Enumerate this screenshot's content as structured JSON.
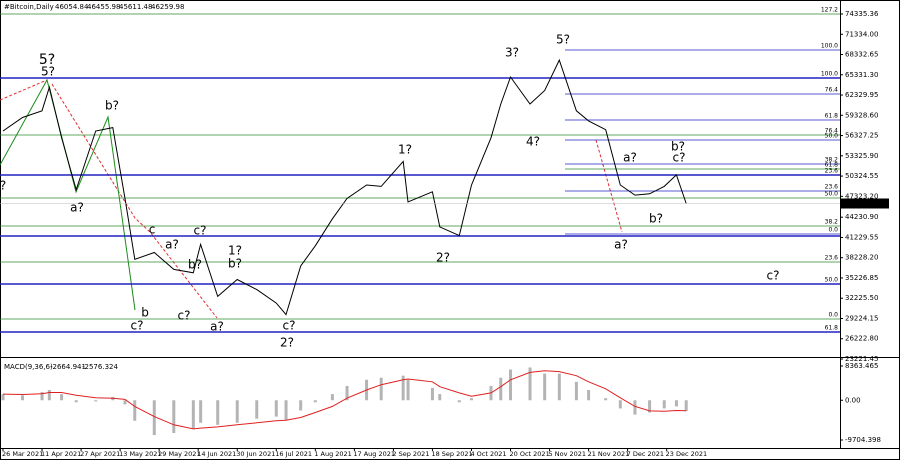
{
  "chart_data": {
    "type": "line",
    "title": "#Bitcoin,Daily",
    "color": "#000000",
    "last_bar": {
      "open": 46054.84,
      "high": 46455.98,
      "low": 45611.48,
      "close": 46259.98
    },
    "x": [
      "26 Mar 2021",
      "3 Apr 2021",
      "11 Apr 2021",
      "14 Apr 2021",
      "19 Apr 2021",
      "25 Apr 2021",
      "3 May 2021",
      "10 May 2021",
      "15 May 2021",
      "19 May 2021",
      "27 May 2021",
      "4 Jun 2021",
      "12 Jun 2021",
      "15 Jun 2021",
      "22 Jun 2021",
      "30 Jun 2021",
      "8 Jul 2021",
      "16 Jul 2021",
      "20 Jul 2021",
      "26 Jul 2021",
      "1 Aug 2021",
      "8 Aug 2021",
      "14 Aug 2021",
      "22 Aug 2021",
      "28 Aug 2021",
      "6 Sep 2021",
      "8 Sep 2021",
      "18 Sep 2021",
      "21 Sep 2021",
      "29 Sep 2021",
      "4 Oct 2021",
      "12 Oct 2021",
      "16 Oct 2021",
      "20 Oct 2021",
      "28 Oct 2021",
      "3 Nov 2021",
      "9 Nov 2021",
      "16 Nov 2021",
      "21 Nov 2021",
      "28 Nov 2021",
      "4 Dec 2021",
      "10 Dec 2021",
      "16 Dec 2021",
      "22 Dec 2021",
      "27 Dec 2021",
      "31 Dec 2021"
    ],
    "values": [
      57000,
      59000,
      60000,
      63500,
      56000,
      48300,
      57000,
      57500,
      47000,
      38000,
      39000,
      36500,
      36000,
      40200,
      32500,
      35000,
      33500,
      31500,
      29800,
      37000,
      40000,
      44000,
      47000,
      49000,
      48800,
      52500,
      46500,
      48000,
      42800,
      41500,
      49000,
      56000,
      61000,
      65000,
      61000,
      63000,
      67500,
      60000,
      58500,
      57200,
      49000,
      47500,
      47700,
      48800,
      50500,
      46259.98
    ],
    "xticks": [
      "26 Mar 2021",
      "11 Apr 2021",
      "27 Apr 2021",
      "13 May 2021",
      "29 May 2021",
      "14 Jun 2021",
      "30 Jun 2021",
      "16 Jul 2021",
      "1 Aug 2021",
      "17 Aug 2021",
      "2 Sep 2021",
      "18 Sep 2021",
      "4 Oct 2021",
      "20 Oct 2021",
      "5 Nov 2021",
      "21 Nov 2021",
      "7 Dec 2021",
      "23 Dec 2021"
    ],
    "ylim": [
      23518,
      76113
    ],
    "yticks": [
      {
        "value": 74335.36,
        "label": "74335.36"
      },
      {
        "value": 71334.0,
        "label": "71334.00"
      },
      {
        "value": 68332.65,
        "label": "68332.65"
      },
      {
        "value": 65331.3,
        "label": "65331.30"
      },
      {
        "value": 62329.95,
        "label": "62329.95"
      },
      {
        "value": 59328.6,
        "label": "59328.60"
      },
      {
        "value": 56327.25,
        "label": "56327.25"
      },
      {
        "value": 53325.9,
        "label": "53325.90"
      },
      {
        "value": 50324.55,
        "label": "50324.55"
      },
      {
        "value": 47323.2,
        "label": "47323.20"
      },
      {
        "value": 44230.9,
        "label": "44230.90"
      },
      {
        "value": 41229.55,
        "label": "41229.55"
      },
      {
        "value": 38228.2,
        "label": "38228.20"
      },
      {
        "value": 35226.85,
        "label": "35226.85"
      },
      {
        "value": 32225.5,
        "label": "32225.50"
      },
      {
        "value": 29224.15,
        "label": "29224.15"
      },
      {
        "value": 26222.8,
        "label": "26222.80"
      },
      {
        "value": 23221.45,
        "label": "23221.45"
      }
    ],
    "levels": [
      {
        "price": 74335,
        "color": "#2e8b2e",
        "label": "127.2"
      },
      {
        "price": 69002,
        "color": "#2020c0",
        "label": "100.0"
      },
      {
        "price": 64853,
        "color": "#2020c0",
        "label": "100.0"
      },
      {
        "price": 62483,
        "color": "#2020c0",
        "label": "76.4"
      },
      {
        "price": 58631,
        "color": "#2020c0",
        "label": "61.8"
      },
      {
        "price": 56408,
        "color": "#2e8b2e",
        "label": "76.4"
      },
      {
        "price": 55667,
        "color": "#2020c0",
        "label": "50.0"
      },
      {
        "price": 52112,
        "color": "#2020c0",
        "label": "38.2"
      },
      {
        "price": 51371,
        "color": "#2e8b2e",
        "label": "61.8"
      },
      {
        "price": 50482,
        "color": "#2020c0",
        "label": "23.6"
      },
      {
        "price": 48112,
        "color": "#2020c0",
        "label": "23.6"
      },
      {
        "price": 47075,
        "color": "#2e8b2e",
        "label": "50.0"
      },
      {
        "price": 42927,
        "color": "#2e8b2e",
        "label": "38.2"
      },
      {
        "price": 41741,
        "color": "#2020c0",
        "label": "0.0"
      },
      {
        "price": 41445,
        "color": "#2020c0"
      },
      {
        "price": 37593,
        "color": "#2e8b2e",
        "label": "23.6"
      },
      {
        "price": 34333,
        "color": "#2020c0",
        "label": "50.0"
      },
      {
        "price": 29148,
        "color": "#2e8b2e",
        "label": "0.0"
      },
      {
        "price": 27222,
        "color": "#2020c0",
        "label": "61.8"
      }
    ],
    "annotations": [
      {
        "text": "5?",
        "color": "#1515d0"
      },
      {
        "text": "5?",
        "color": "#1a8c1a"
      },
      {
        "text": "a?",
        "color": "#1a8c1a"
      },
      {
        "text": "b?",
        "color": "#1a8c1a"
      },
      {
        "text": "c?",
        "color": "#1a8c1a"
      },
      {
        "text": "b",
        "color": "#1a8c1a"
      },
      {
        "text": "c",
        "color": "#1a8c1a"
      },
      {
        "text": "a?",
        "color": "#1a8c1a"
      },
      {
        "text": "c?",
        "color": "#1a8c1a"
      },
      {
        "text": "b?",
        "color": "#1a8c1a"
      },
      {
        "text": "c?",
        "color": "#1a8c1a"
      },
      {
        "text": "a?",
        "color": "#1a8c1a"
      },
      {
        "text": "1?",
        "color": "#1a8c1a"
      },
      {
        "text": "b?",
        "color": "#1a8c1a"
      },
      {
        "text": "c?",
        "color": "#1a8c1a"
      },
      {
        "text": "2?",
        "color": "#1a8c1a"
      },
      {
        "text": "1?",
        "color": "#1a8c1a"
      },
      {
        "text": "2?",
        "color": "#1a8c1a"
      },
      {
        "text": "3?",
        "color": "#1a8c1a"
      },
      {
        "text": "4?",
        "color": "#1a8c1a"
      },
      {
        "text": "5?",
        "color": "#1a8c1a"
      },
      {
        "text": "a?",
        "color": "#e03030"
      },
      {
        "text": "c?",
        "color": "#e03030"
      },
      {
        "text": "b?",
        "color": "#1a8c1a"
      },
      {
        "text": "b?",
        "color": "#e03030"
      },
      {
        "text": "a?",
        "color": "#1a8c1a"
      },
      {
        "text": "c?",
        "color": "#1a8c1a"
      },
      {
        "text": "?",
        "color": "#1a8c1a"
      }
    ],
    "macd": {
      "label": "MACD(9,36,6)",
      "main": -2664.941,
      "signal": -2576.324,
      "bar_color": "#b4b4b4",
      "signal_color": "#e02020",
      "ylim": [
        -11658,
        9828
      ],
      "yticks": [
        8363.465,
        {
          "value": 0,
          "label": "0.00"
        },
        -9704.398
      ],
      "histogram": [
        1500,
        1200,
        2000,
        2500,
        1500,
        -500,
        -300,
        800,
        -1000,
        -5000,
        -8500,
        -8000,
        -7000,
        -5500,
        -6000,
        -5500,
        -4500,
        -4000,
        -4800,
        -2500,
        -500,
        1500,
        3500,
        5000,
        5500,
        6000,
        5000,
        3000,
        1500,
        -500,
        500,
        3500,
        5500,
        7500,
        8000,
        6500,
        6500,
        4500,
        2500,
        500,
        -2000,
        -3500,
        -3000,
        -2000,
        -1500,
        -2664.941
      ],
      "signal_values": [
        1500,
        1400,
        1600,
        1900,
        1900,
        1200,
        600,
        500,
        200,
        -1500,
        -4000,
        -6000,
        -7000,
        -6800,
        -6500,
        -6000,
        -5500,
        -5000,
        -4900,
        -4200,
        -3000,
        -1500,
        500,
        2500,
        3800,
        5000,
        5200,
        4500,
        3300,
        1800,
        1000,
        1800,
        3300,
        5000,
        6800,
        7200,
        7000,
        6000,
        4500,
        2800,
        600,
        -1500,
        -2600,
        -2700,
        -2500,
        -2576.324
      ]
    }
  }
}
